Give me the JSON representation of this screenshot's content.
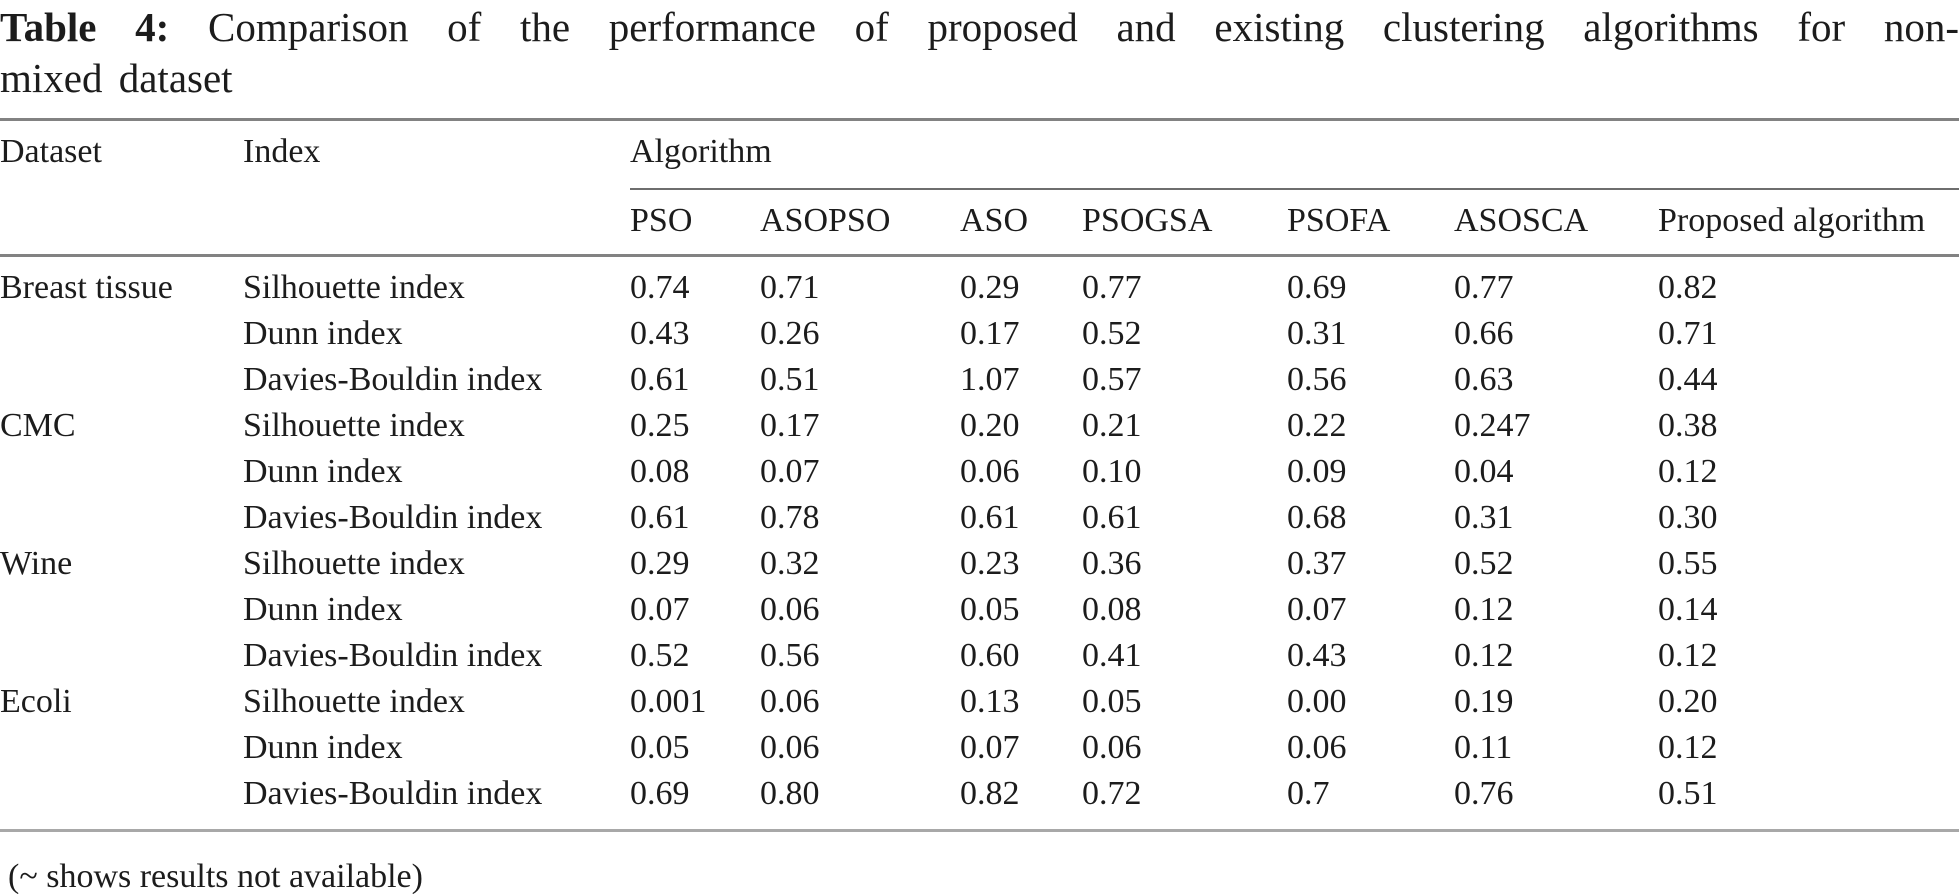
{
  "title": {
    "label": "Table 4:",
    "line1_rest": "Comparison of the performance of proposed and existing clustering algorithms for non-",
    "line2": "mixed dataset"
  },
  "table": {
    "headers": {
      "dataset": "Dataset",
      "index": "Index",
      "algorithm_group": "Algorithm"
    },
    "algorithm_columns": [
      "PSO",
      "ASOPSO",
      "ASO",
      "PSOGSA",
      "PSOFA",
      "ASOSCA",
      "Proposed algorithm"
    ],
    "rows": [
      {
        "dataset": "Breast tissue",
        "index": "Silhouette index",
        "values": [
          "0.74",
          "0.71",
          "0.29",
          "0.77",
          "0.69",
          "0.77",
          "0.82"
        ]
      },
      {
        "dataset": "",
        "index": "Dunn index",
        "values": [
          "0.43",
          "0.26",
          "0.17",
          "0.52",
          "0.31",
          "0.66",
          "0.71"
        ]
      },
      {
        "dataset": "",
        "index": "Davies-Bouldin index",
        "values": [
          "0.61",
          "0.51",
          "1.07",
          "0.57",
          "0.56",
          "0.63",
          "0.44"
        ]
      },
      {
        "dataset": "CMC",
        "index": "Silhouette index",
        "values": [
          "0.25",
          "0.17",
          "0.20",
          "0.21",
          "0.22",
          "0.247",
          "0.38"
        ]
      },
      {
        "dataset": "",
        "index": "Dunn index",
        "values": [
          "0.08",
          "0.07",
          "0.06",
          "0.10",
          "0.09",
          "0.04",
          "0.12"
        ]
      },
      {
        "dataset": "",
        "index": "Davies-Bouldin index",
        "values": [
          "0.61",
          "0.78",
          "0.61",
          "0.61",
          "0.68",
          "0.31",
          "0.30"
        ]
      },
      {
        "dataset": "Wine",
        "index": "Silhouette index",
        "values": [
          "0.29",
          "0.32",
          "0.23",
          "0.36",
          "0.37",
          "0.52",
          "0.55"
        ]
      },
      {
        "dataset": "",
        "index": "Dunn index",
        "values": [
          "0.07",
          "0.06",
          "0.05",
          "0.08",
          "0.07",
          "0.12",
          "0.14"
        ]
      },
      {
        "dataset": "",
        "index": "Davies-Bouldin index",
        "values": [
          "0.52",
          "0.56",
          "0.60",
          "0.41",
          "0.43",
          "0.12",
          "0.12"
        ]
      },
      {
        "dataset": "Ecoli",
        "index": "Silhouette index",
        "values": [
          "0.001",
          "0.06",
          "0.13",
          "0.05",
          "0.00",
          "0.19",
          "0.20"
        ]
      },
      {
        "dataset": "",
        "index": "Dunn index",
        "values": [
          "0.05",
          "0.06",
          "0.07",
          "0.06",
          "0.06",
          "0.11",
          "0.12"
        ]
      },
      {
        "dataset": "",
        "index": "Davies-Bouldin index",
        "values": [
          "0.69",
          "0.80",
          "0.82",
          "0.72",
          "0.7",
          "0.76",
          "0.51"
        ]
      }
    ]
  },
  "footnote": "(~ shows results not available)",
  "colors": {
    "text": "#1c1c1c",
    "rule_dark": "#828282",
    "rule_light": "#a8a8a8",
    "background": "#ffffff"
  },
  "chart_data": {
    "type": "table",
    "title": "Table 4: Comparison of the performance of proposed and existing clustering algorithms for non-mixed dataset",
    "columns": [
      "Dataset",
      "Index",
      "PSO",
      "ASOPSO",
      "ASO",
      "PSOGSA",
      "PSOFA",
      "ASOSCA",
      "Proposed algorithm"
    ],
    "rows": [
      [
        "Breast tissue",
        "Silhouette index",
        0.74,
        0.71,
        0.29,
        0.77,
        0.69,
        0.77,
        0.82
      ],
      [
        "Breast tissue",
        "Dunn index",
        0.43,
        0.26,
        0.17,
        0.52,
        0.31,
        0.66,
        0.71
      ],
      [
        "Breast tissue",
        "Davies-Bouldin index",
        0.61,
        0.51,
        1.07,
        0.57,
        0.56,
        0.63,
        0.44
      ],
      [
        "CMC",
        "Silhouette index",
        0.25,
        0.17,
        0.2,
        0.21,
        0.22,
        0.247,
        0.38
      ],
      [
        "CMC",
        "Dunn index",
        0.08,
        0.07,
        0.06,
        0.1,
        0.09,
        0.04,
        0.12
      ],
      [
        "CMC",
        "Davies-Bouldin index",
        0.61,
        0.78,
        0.61,
        0.61,
        0.68,
        0.31,
        0.3
      ],
      [
        "Wine",
        "Silhouette index",
        0.29,
        0.32,
        0.23,
        0.36,
        0.37,
        0.52,
        0.55
      ],
      [
        "Wine",
        "Dunn index",
        0.07,
        0.06,
        0.05,
        0.08,
        0.07,
        0.12,
        0.14
      ],
      [
        "Wine",
        "Davies-Bouldin index",
        0.52,
        0.56,
        0.6,
        0.41,
        0.43,
        0.12,
        0.12
      ],
      [
        "Ecoli",
        "Silhouette index",
        0.001,
        0.06,
        0.13,
        0.05,
        0.0,
        0.19,
        0.2
      ],
      [
        "Ecoli",
        "Dunn index",
        0.05,
        0.06,
        0.07,
        0.06,
        0.06,
        0.11,
        0.12
      ],
      [
        "Ecoli",
        "Davies-Bouldin index",
        0.69,
        0.8,
        0.82,
        0.72,
        0.7,
        0.76,
        0.51
      ]
    ],
    "footnote": "(~ shows results not available)"
  }
}
